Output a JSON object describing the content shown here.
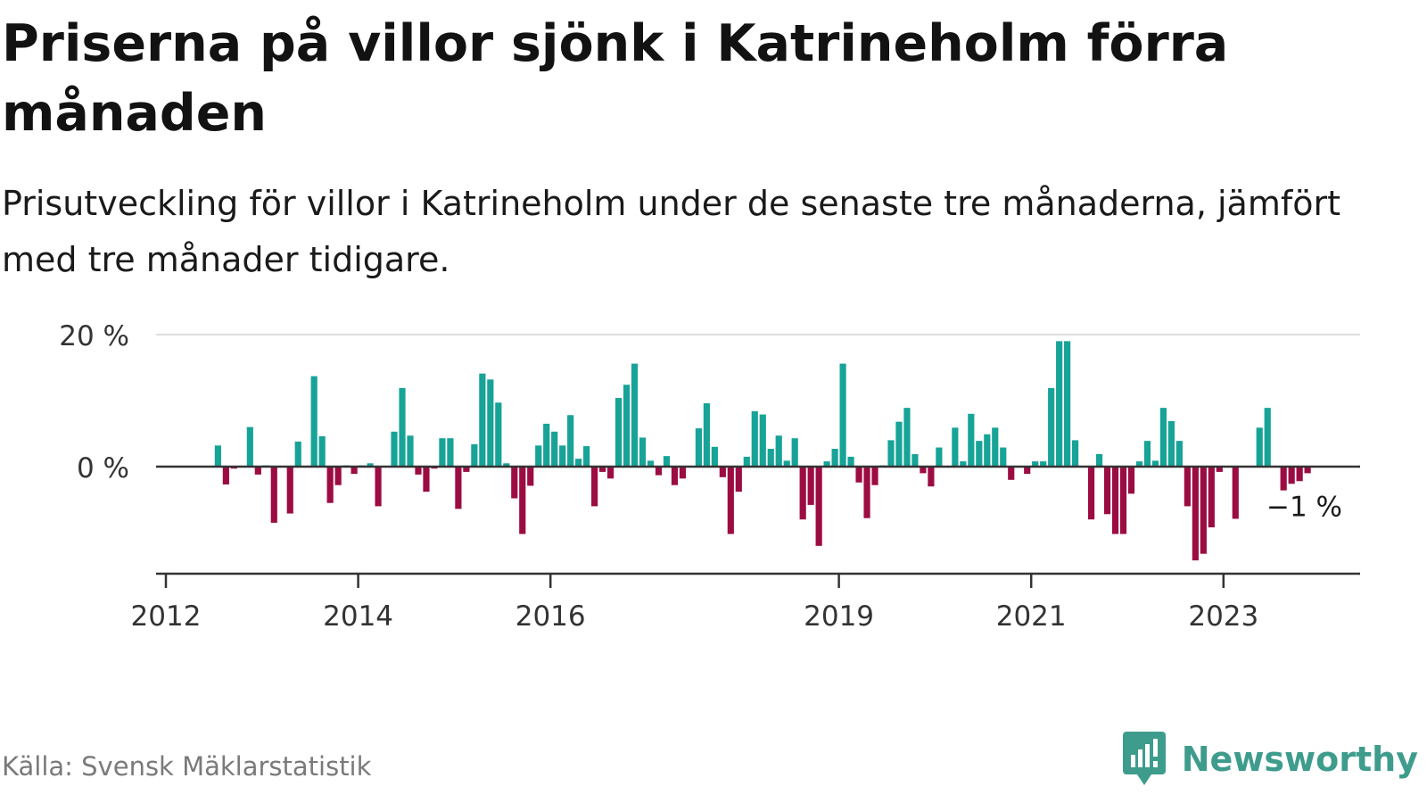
{
  "title": "Priserna på villor sjönk i Katrineholm förra månaden",
  "subtitle": "Prisutveckling för villor i Katrineholm under de senaste tre månaderna, jämfört med tre månader tidigare.",
  "source": "Källa: Svensk Mäklarstatistik",
  "brand": {
    "name": "Newsworthy",
    "logo": "newsworthy-logo-icon"
  },
  "colors": {
    "positive": "#17a398",
    "negative": "#9c0c43",
    "grid": "#dddddd",
    "axis": "#333333"
  },
  "chart_data": {
    "type": "bar",
    "x_start": "2012-01",
    "x_frequency": "monthly",
    "ylim": [
      -15,
      20
    ],
    "y_ticks": [
      {
        "value": 0,
        "label": "0 %"
      },
      {
        "value": 20,
        "label": "20 %"
      }
    ],
    "x_ticks": [
      {
        "year": 2012,
        "label": "2012"
      },
      {
        "year": 2014,
        "label": "2014"
      },
      {
        "year": 2016,
        "label": "2016"
      },
      {
        "year": 2019,
        "label": "2019"
      },
      {
        "year": 2021,
        "label": "2021"
      },
      {
        "year": 2023,
        "label": "2023"
      }
    ],
    "grid": true,
    "annotation": {
      "label": "−1 %",
      "value": -1
    },
    "values": [
      null,
      null,
      null,
      null,
      null,
      null,
      3.2,
      -2.7,
      -0.3,
      null,
      6.0,
      -1.2,
      0.2,
      -8.5,
      0.1,
      -7.1,
      3.8,
      0.1,
      13.7,
      4.6,
      -5.5,
      -2.8,
      0.2,
      -1.1,
      0.2,
      0.5,
      -6.0,
      0.1,
      5.3,
      11.9,
      4.7,
      -1.2,
      -3.8,
      -0.3,
      4.3,
      4.3,
      -6.4,
      -0.8,
      3.4,
      14.1,
      13.2,
      9.7,
      0.5,
      -4.8,
      -10.2,
      -2.9,
      3.2,
      6.5,
      5.3,
      3.2,
      7.8,
      1.2,
      3.1,
      -6.0,
      -0.8,
      -1.8,
      10.4,
      12.4,
      15.6,
      4.4,
      0.9,
      -1.3,
      1.6,
      -2.8,
      -1.8,
      null,
      5.8,
      9.6,
      3.0,
      -1.6,
      -10.2,
      -3.8,
      1.5,
      8.4,
      7.9,
      2.7,
      4.7,
      0.9,
      4.3,
      -8.0,
      -5.8,
      -12.0,
      0.8,
      2.7,
      15.6,
      1.5,
      -2.4,
      -7.8,
      -2.8,
      0.2,
      4.0,
      6.8,
      8.9,
      1.9,
      -1.0,
      -3.0,
      2.9,
      0.1,
      5.9,
      0.8,
      8.0,
      3.9,
      4.9,
      5.9,
      2.9,
      -2.0,
      0.1,
      -1.1,
      0.8,
      0.8,
      11.9,
      19.0,
      19.0,
      4.0,
      null,
      -8.0,
      1.9,
      -7.2,
      -10.2,
      -10.2,
      -4.1,
      0.8,
      3.9,
      0.9,
      8.9,
      6.9,
      3.9,
      -6.0,
      -14.2,
      -13.2,
      -9.2,
      -0.8,
      null,
      -7.9,
      null,
      null,
      5.9,
      8.9,
      null,
      -3.6,
      -2.6,
      -2.2,
      -1.0
    ]
  }
}
